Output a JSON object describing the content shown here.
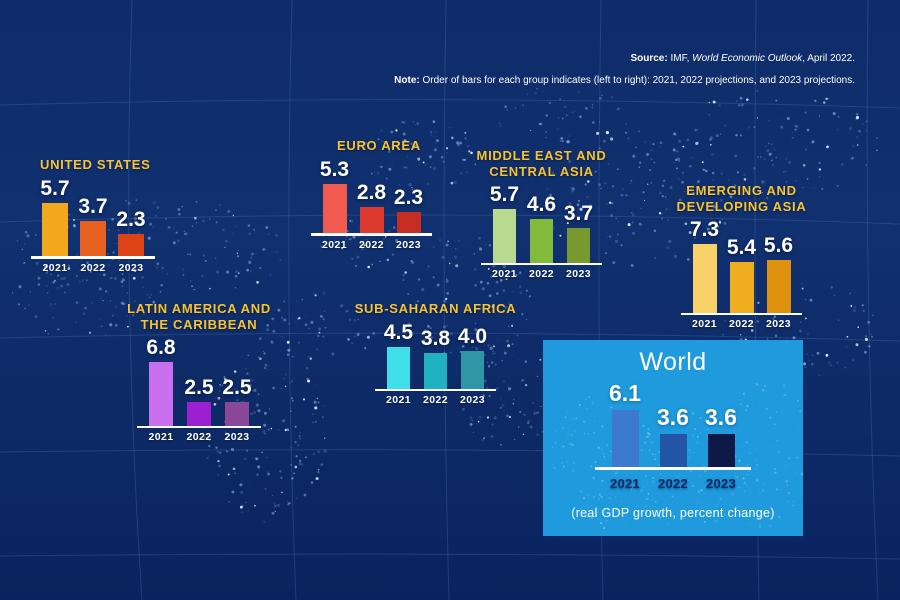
{
  "header": {
    "source_label": "Source:",
    "source_pre_italic": " IMF, ",
    "source_italic": "World Economic Outlook",
    "source_post_italic": ", April 2022.",
    "note_label": "Note:",
    "note_text": " Order of bars for each group indicates (left to right): 2021, 2022 projections, and 2023 projections."
  },
  "world_box": {
    "title": "World",
    "caption": "(real GDP growth, percent change)"
  },
  "chart_data": {
    "type": "bar",
    "title": "Real GDP growth, percent change",
    "categories": [
      "2021",
      "2022",
      "2023"
    ],
    "unit": "percent change, real GDP growth",
    "source": "IMF, World Economic Outlook, April 2022",
    "note": "Order of bars for each group indicates (left to right): 2021, 2022 projections, and 2023 projections.",
    "ylim": [
      0,
      8
    ],
    "grid": false,
    "series": [
      {
        "name": "United States",
        "title_lines": [
          "UNITED STATES"
        ],
        "values": [
          5.7,
          3.7,
          2.3
        ],
        "colors": [
          "#f3a71d",
          "#e6601f",
          "#dc4418"
        ]
      },
      {
        "name": "Euro Area",
        "title_lines": [
          "EURO AREA"
        ],
        "values": [
          5.3,
          2.8,
          2.3
        ],
        "colors": [
          "#f15a4f",
          "#de392e",
          "#c72d23"
        ]
      },
      {
        "name": "Middle East and Central Asia",
        "title_lines": [
          "MIDDLE EAST AND",
          "CENTRAL ASIA"
        ],
        "values": [
          5.7,
          4.6,
          3.7
        ],
        "colors": [
          "#b9d890",
          "#82ba3b",
          "#78992e"
        ]
      },
      {
        "name": "Emerging and Developing Asia",
        "title_lines": [
          "EMERGING AND",
          "DEVELOPING ASIA"
        ],
        "values": [
          7.3,
          5.4,
          5.6
        ],
        "colors": [
          "#f8d168",
          "#eeae20",
          "#df920e"
        ]
      },
      {
        "name": "Latin America and the Caribbean",
        "title_lines": [
          "LATIN AMERICA AND",
          "THE CARIBBEAN"
        ],
        "values": [
          6.8,
          2.5,
          2.5
        ],
        "colors": [
          "#ca6fee",
          "#9c20d2",
          "#8a4898"
        ]
      },
      {
        "name": "Sub-Saharan Africa",
        "title_lines": [
          "SUB-SAHARAN AFRICA"
        ],
        "values": [
          4.5,
          3.8,
          4.0
        ],
        "colors": [
          "#3fdfe9",
          "#20b2c2",
          "#2f96a6"
        ]
      },
      {
        "name": "World",
        "title_lines": [
          "World"
        ],
        "values": [
          6.1,
          3.6,
          3.6
        ],
        "colors": [
          "#3d79cf",
          "#2255a5",
          "#0d1a47"
        ]
      }
    ],
    "value_labels": {
      "United States": [
        "5.7",
        "3.7",
        "2.3"
      ],
      "Euro Area": [
        "5.3",
        "2.8",
        "2.3"
      ],
      "Middle East and Central Asia": [
        "5.7",
        "4.6",
        "3.7"
      ],
      "Emerging and Developing Asia": [
        "7.3",
        "5.4",
        "5.6"
      ],
      "Latin America and the Caribbean": [
        "6.8",
        "2.5",
        "2.5"
      ],
      "Sub-Saharan Africa": [
        "4.5",
        "3.8",
        "4.0"
      ],
      "World": [
        "6.1",
        "3.6",
        "3.6"
      ]
    }
  }
}
